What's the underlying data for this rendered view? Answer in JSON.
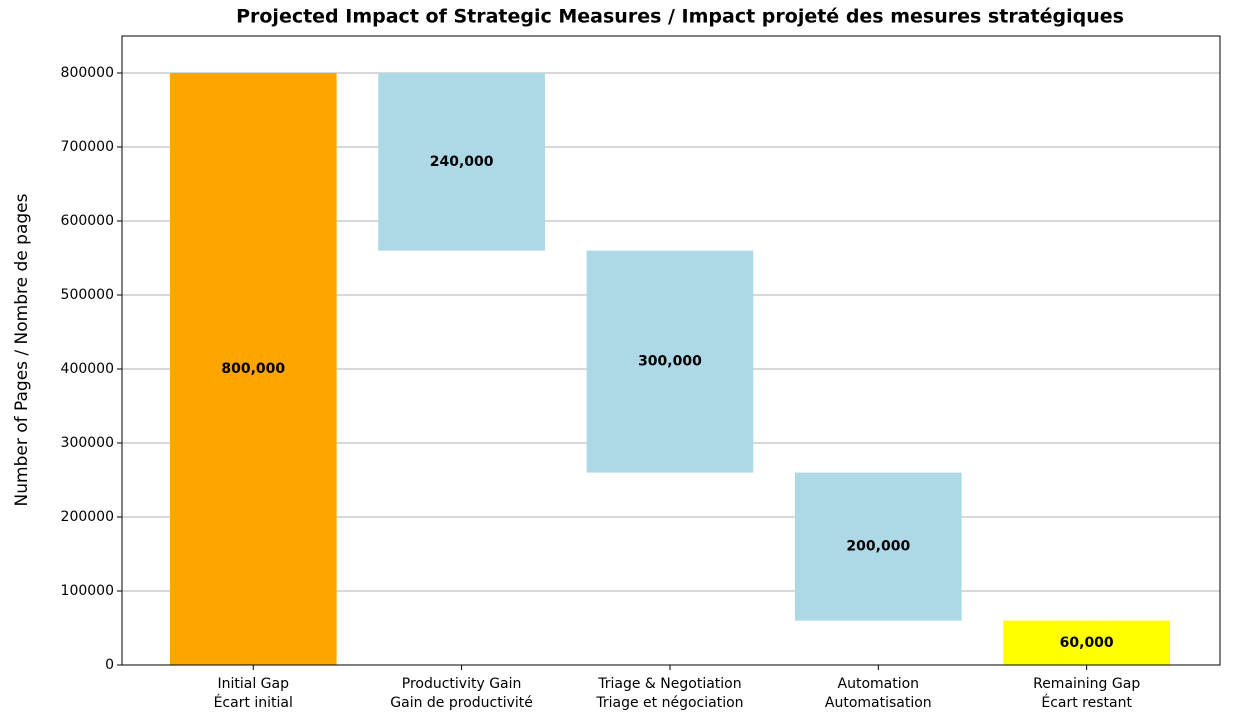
{
  "chart_data": {
    "type": "waterfall",
    "title": "Projected Impact of Strategic Measures / Impact projeté des mesures stratégiques",
    "ylabel": "Number of Pages / Nombre de pages",
    "categories": [
      "Initial Gap\nÉcart initial",
      "Productivity Gain\nGain de productivité",
      "Triage & Negotiation\nTriage et négociation",
      "Automation\nAutomatisation",
      "Remaining Gap\nÉcart restant"
    ],
    "values": [
      800000,
      240000,
      300000,
      200000,
      60000
    ],
    "value_labels": [
      "800,000",
      "240,000",
      "300,000",
      "200,000",
      "60,000"
    ],
    "measures": [
      "total",
      "decrease",
      "decrease",
      "decrease",
      "total"
    ],
    "colors": [
      "#ffa500",
      "#add8e6",
      "#add8e6",
      "#add8e6",
      "#ffff00"
    ],
    "ylim": [
      0,
      850000
    ],
    "yticks": [
      0,
      100000,
      200000,
      300000,
      400000,
      500000,
      600000,
      700000,
      800000
    ],
    "grid": true
  }
}
